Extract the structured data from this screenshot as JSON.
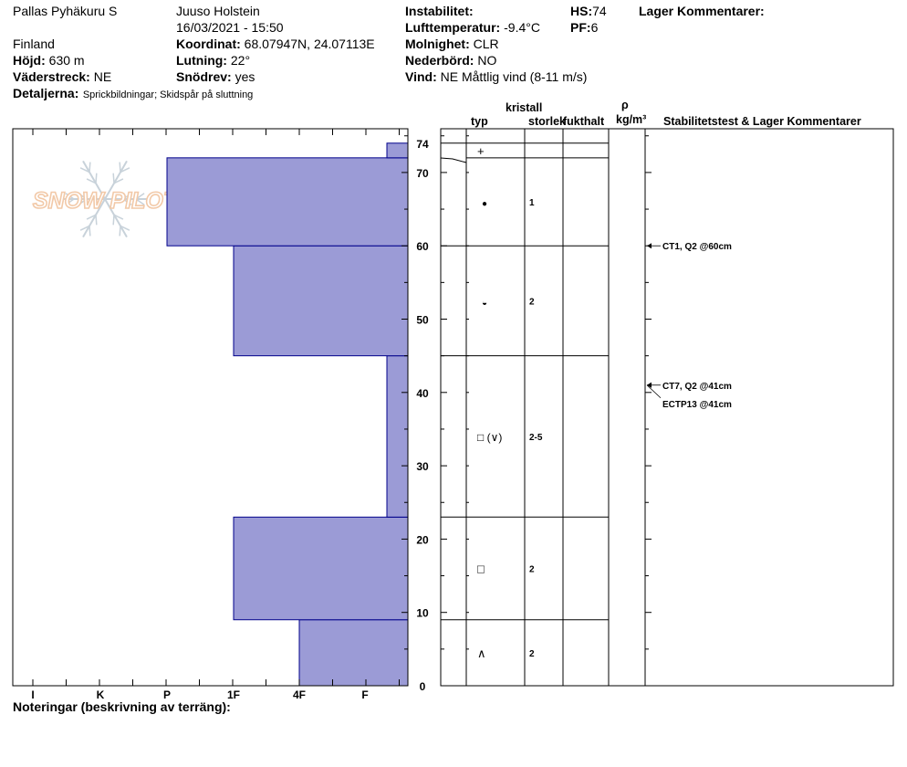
{
  "header": {
    "location": "Pallas Pyhäkuru S",
    "country": "Finland",
    "observer": "Juuso Holstein",
    "datetime": "16/03/2021 - 15:50",
    "coordinates_label": "Koordinat:",
    "coordinates_value": "68.07947N, 24.07113E",
    "elevation_label": "Höjd:",
    "elevation_value": "630 m",
    "aspect_label": "Väderstreck:",
    "aspect_value": "NE",
    "slope_label": "Lutning:",
    "slope_value": "22°",
    "blowing_snow_label": "Snödrev:",
    "blowing_snow_value": "yes",
    "details_label": "Detaljerna:",
    "details_value": "Sprickbildningar;  Skidspår på sluttning",
    "instability_label": "Instabilitet:",
    "instability_value": "",
    "air_temp_label": "Lufttemperatur:",
    "air_temp_value": "-9.4°C",
    "sky_label": "Molnighet:",
    "sky_value": "CLR",
    "precip_label": "Nederbörd:",
    "precip_value": "NO",
    "wind_label": "Vind:",
    "wind_value": "NE Måttlig vind (8-11 m/s)",
    "hs_label": "HS:",
    "hs_value": "74",
    "pf_label": "PF:",
    "pf_value": "6",
    "layer_comments_label": "Lager Kommentarer:",
    "watermark": "SNOW PILOT"
  },
  "columns": {
    "kristall": "kristall",
    "typ": "typ",
    "storlek": "storlek",
    "fukthalt": "fukthalt",
    "rho": "ρ",
    "density_unit": "kg/m³",
    "stability": "Stabilitetstest & Lager Kommentarer"
  },
  "footer": {
    "notes_label": "Noteringar (beskrivning av terräng):"
  },
  "chart_data": {
    "type": "bar",
    "orientation": "horizontal",
    "x_axis": {
      "label": "",
      "categories": [
        "I",
        "K",
        "P",
        "1F",
        "4F",
        "F"
      ],
      "direction": "hardness decreases to the right"
    },
    "y_axis": {
      "label": "",
      "ylim": [
        0,
        75
      ],
      "ticks": [
        0,
        10,
        20,
        30,
        40,
        50,
        60,
        70
      ],
      "total_label": "74"
    },
    "layers": [
      {
        "bottom": 0,
        "top": 9,
        "hardness": "4F",
        "crystal_form": "depth hoar",
        "crystal_symbol": "∧",
        "grain_size": "2"
      },
      {
        "bottom": 9,
        "top": 23,
        "hardness": "1F",
        "crystal_form": "faceted crystals",
        "crystal_symbol": "□",
        "grain_size": "2"
      },
      {
        "bottom": 23,
        "top": 45,
        "hardness": "F-",
        "crystal_form": "faceted crystals (depth hoar)",
        "crystal_symbol": "□ (∨)",
        "grain_size": "2-5"
      },
      {
        "bottom": 45,
        "top": 60,
        "hardness": "1F",
        "crystal_form": "melt-freeze crust",
        "crystal_symbol": "◒",
        "grain_size": "2"
      },
      {
        "bottom": 60,
        "top": 72,
        "hardness": "P",
        "crystal_form": "rounded grains",
        "crystal_symbol": "●",
        "grain_size": "1"
      },
      {
        "bottom": 72,
        "top": 74,
        "hardness": "F-",
        "crystal_form": "precipitation particles",
        "crystal_symbol": "+",
        "grain_size": ""
      }
    ],
    "stability_tests": [
      {
        "depth": 60,
        "text": "CT1, Q2 @60cm"
      },
      {
        "depth": 41,
        "text": "CT7, Q2 @41cm"
      },
      {
        "depth": 41,
        "text": "ECTP13 @41cm"
      }
    ],
    "colors": {
      "fill": "#9b9bd6",
      "stroke": "#00008b",
      "watermark": "#f2c9a8"
    }
  }
}
